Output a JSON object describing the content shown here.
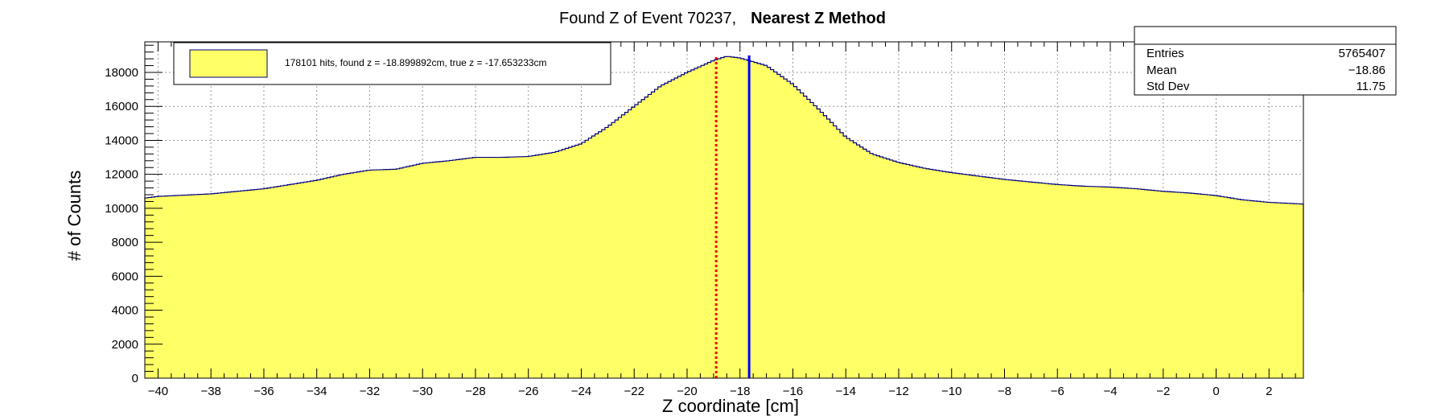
{
  "title": {
    "part1": "Found Z of Event 70237,",
    "part2": "Nearest Z Method"
  },
  "colors": {
    "fill": "#ffff66",
    "outline": "#000080",
    "found_line": "#ff0000",
    "true_line": "#0000ff",
    "grid": "#999999"
  },
  "legend": {
    "entry": "178101 hits, found z = -18.899892cm, true z = -17.653233cm"
  },
  "stats": {
    "rows": [
      {
        "label": "Entries",
        "value": "5765407"
      },
      {
        "label": "Mean",
        "value": "−18.86"
      },
      {
        "label": "Std Dev",
        "value": "11.75"
      }
    ]
  },
  "chart_data": {
    "type": "histogram",
    "xlabel": "Z coordinate [cm]",
    "ylabel": "# of Counts",
    "xlim": [
      -40.5,
      3.3
    ],
    "ylim": [
      0,
      19800
    ],
    "x_ticks": [
      -40,
      -38,
      -36,
      -34,
      -32,
      -30,
      -28,
      -26,
      -24,
      -22,
      -20,
      -18,
      -16,
      -14,
      -12,
      -10,
      -8,
      -6,
      -4,
      -2,
      0,
      2
    ],
    "y_ticks": [
      0,
      2000,
      4000,
      6000,
      8000,
      10000,
      12000,
      14000,
      16000,
      18000
    ],
    "grid": true,
    "profile": [
      [
        -40.5,
        10600
      ],
      [
        -40,
        10700
      ],
      [
        -38,
        10850
      ],
      [
        -36,
        11150
      ],
      [
        -34,
        11650
      ],
      [
        -33,
        12000
      ],
      [
        -32,
        12250
      ],
      [
        -31,
        12300
      ],
      [
        -30,
        12650
      ],
      [
        -29,
        12800
      ],
      [
        -28,
        13000
      ],
      [
        -27,
        13000
      ],
      [
        -26,
        13050
      ],
      [
        -25,
        13300
      ],
      [
        -24,
        13800
      ],
      [
        -23,
        14800
      ],
      [
        -22,
        16000
      ],
      [
        -21,
        17200
      ],
      [
        -20,
        18000
      ],
      [
        -19,
        18700
      ],
      [
        -18.5,
        18950
      ],
      [
        -18,
        18850
      ],
      [
        -17,
        18400
      ],
      [
        -16,
        17300
      ],
      [
        -15,
        15800
      ],
      [
        -14,
        14200
      ],
      [
        -13,
        13200
      ],
      [
        -12,
        12700
      ],
      [
        -11,
        12350
      ],
      [
        -10,
        12100
      ],
      [
        -9,
        11900
      ],
      [
        -8,
        11700
      ],
      [
        -7,
        11550
      ],
      [
        -6,
        11400
      ],
      [
        -5,
        11300
      ],
      [
        -4,
        11250
      ],
      [
        -3,
        11150
      ],
      [
        -2,
        11000
      ],
      [
        -1,
        10900
      ],
      [
        0,
        10750
      ],
      [
        1,
        10500
      ],
      [
        2,
        10350
      ],
      [
        3.3,
        10250
      ]
    ],
    "found_z": -18.899892,
    "true_z": -17.653233
  }
}
